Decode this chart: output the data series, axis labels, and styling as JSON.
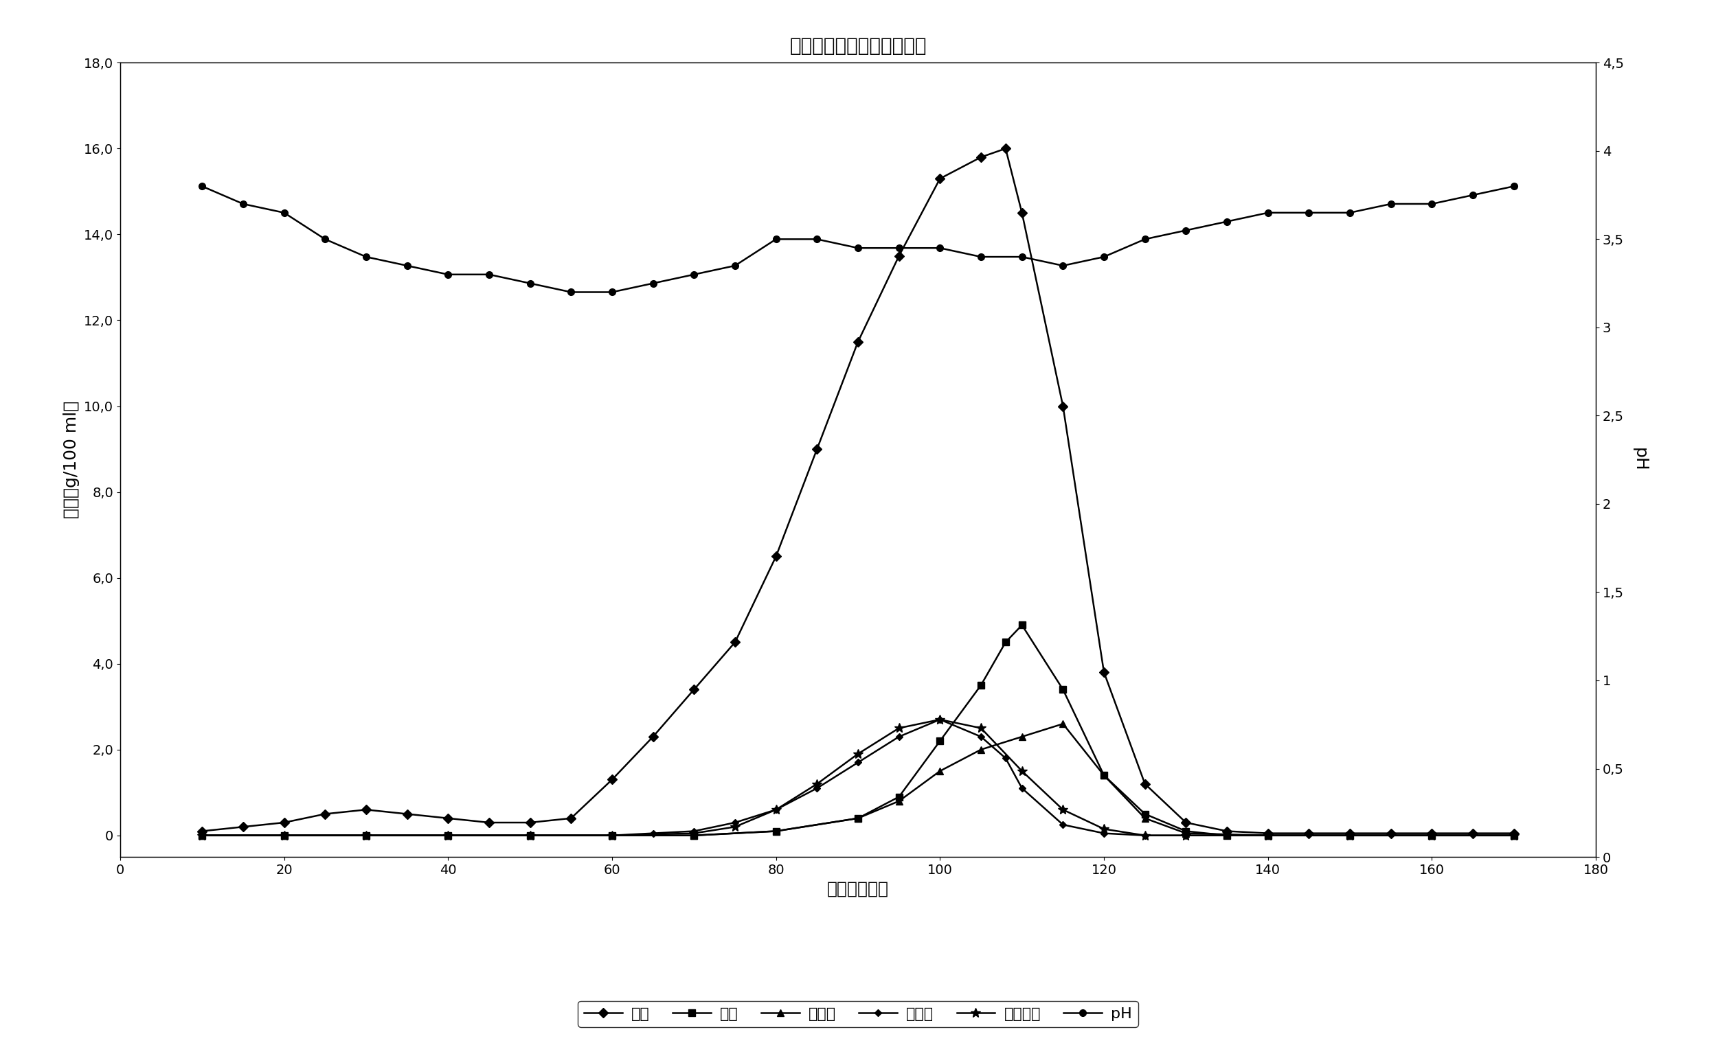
{
  "title": "木糖结晶流出物的色谱分离",
  "xlabel": "时间（分钟）",
  "ylabel_left": "浓度（g/100 ml）",
  "ylabel_right": "pH",
  "xlim": [
    0,
    180
  ],
  "ylim_left": [
    -0.5,
    18.0
  ],
  "ylim_right": [
    0,
    4.5
  ],
  "xticks": [
    0,
    20,
    40,
    60,
    80,
    100,
    120,
    140,
    160,
    180
  ],
  "yticks_left": [
    0.0,
    2.0,
    4.0,
    6.0,
    8.0,
    10.0,
    12.0,
    14.0,
    16.0,
    18.0
  ],
  "yticks_left_labels": [
    "0",
    "2,0",
    "4,0",
    "6,0",
    "8,0",
    "10,0",
    "12,0",
    "14,0",
    "16,0",
    "18,0"
  ],
  "yticks_right": [
    0,
    0.5,
    1.0,
    1.5,
    2.0,
    2.5,
    3.0,
    3.5,
    4.0,
    4.5
  ],
  "yticks_right_labels": [
    "0",
    "0,5",
    "1",
    "1,5",
    "2",
    "2,5",
    "3",
    "3,5",
    "4",
    "4,5"
  ],
  "conc_x": [
    10,
    15,
    20,
    25,
    30,
    35,
    40,
    45,
    50,
    55,
    60,
    65,
    70,
    75,
    80,
    85,
    90,
    95,
    100,
    105,
    108,
    110,
    115,
    120,
    125,
    130,
    135,
    140,
    145,
    150,
    155,
    160,
    165,
    170
  ],
  "conc_y": [
    0.1,
    0.2,
    0.3,
    0.5,
    0.6,
    0.5,
    0.4,
    0.3,
    0.3,
    0.4,
    1.3,
    2.3,
    3.4,
    4.5,
    6.5,
    9.0,
    11.5,
    13.5,
    15.3,
    15.8,
    16.0,
    14.5,
    10.0,
    3.8,
    1.2,
    0.3,
    0.1,
    0.05,
    0.05,
    0.05,
    0.05,
    0.05,
    0.05,
    0.05
  ],
  "xylose_x": [
    10,
    20,
    30,
    40,
    50,
    60,
    70,
    80,
    90,
    95,
    100,
    105,
    108,
    110,
    115,
    120,
    125,
    130,
    135,
    140,
    150,
    160,
    170
  ],
  "xylose_y": [
    0.0,
    0.0,
    0.0,
    0.0,
    0.0,
    0.0,
    0.0,
    0.1,
    0.4,
    0.9,
    2.2,
    3.5,
    4.5,
    4.9,
    3.4,
    1.4,
    0.5,
    0.1,
    0.0,
    0.0,
    0.0,
    0.0,
    0.0
  ],
  "rhamnose_x": [
    10,
    20,
    30,
    40,
    50,
    60,
    70,
    80,
    90,
    95,
    100,
    105,
    110,
    115,
    120,
    125,
    130,
    140,
    150,
    160,
    170
  ],
  "rhamnose_y": [
    0.0,
    0.0,
    0.0,
    0.0,
    0.0,
    0.0,
    0.0,
    0.1,
    0.4,
    0.8,
    1.5,
    2.0,
    2.3,
    2.6,
    1.4,
    0.4,
    0.05,
    0.0,
    0.0,
    0.0,
    0.0
  ],
  "arabinose_x": [
    10,
    20,
    30,
    40,
    50,
    60,
    65,
    70,
    75,
    80,
    85,
    90,
    95,
    100,
    105,
    108,
    110,
    115,
    120,
    125,
    130,
    140,
    150,
    160,
    170
  ],
  "arabinose_y": [
    0.0,
    0.0,
    0.0,
    0.0,
    0.0,
    0.0,
    0.05,
    0.1,
    0.3,
    0.6,
    1.1,
    1.7,
    2.3,
    2.7,
    2.3,
    1.8,
    1.1,
    0.25,
    0.05,
    0.0,
    0.0,
    0.0,
    0.0,
    0.0,
    0.0
  ],
  "other_x": [
    10,
    20,
    30,
    40,
    50,
    60,
    70,
    75,
    80,
    85,
    90,
    95,
    100,
    105,
    110,
    115,
    120,
    125,
    130,
    140,
    150,
    160,
    170
  ],
  "other_y": [
    0.0,
    0.0,
    0.0,
    0.0,
    0.0,
    0.0,
    0.05,
    0.2,
    0.6,
    1.2,
    1.9,
    2.5,
    2.7,
    2.5,
    1.5,
    0.6,
    0.15,
    0.0,
    0.0,
    0.0,
    0.0,
    0.0,
    0.0
  ],
  "ph_x": [
    10,
    15,
    20,
    25,
    30,
    35,
    40,
    45,
    50,
    55,
    60,
    65,
    70,
    75,
    80,
    85,
    90,
    95,
    100,
    105,
    110,
    115,
    120,
    125,
    130,
    135,
    140,
    145,
    150,
    155,
    160,
    165,
    170
  ],
  "ph_y": [
    3.8,
    3.7,
    3.65,
    3.5,
    3.4,
    3.35,
    3.3,
    3.3,
    3.25,
    3.2,
    3.2,
    3.25,
    3.3,
    3.35,
    3.5,
    3.5,
    3.45,
    3.45,
    3.45,
    3.4,
    3.4,
    3.35,
    3.4,
    3.5,
    3.55,
    3.6,
    3.65,
    3.65,
    3.65,
    3.7,
    3.7,
    3.75,
    3.8
  ],
  "legend_labels": [
    "浓度",
    "木糖",
    "鼠杉糖",
    "阿戊糖",
    "其它单糖",
    "pH"
  ],
  "line_color": "#000000",
  "bg_color": "#ffffff"
}
